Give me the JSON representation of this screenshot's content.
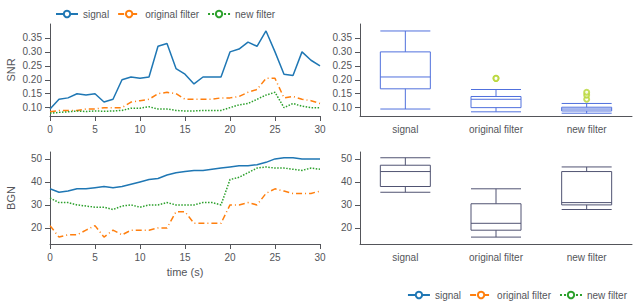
{
  "chart_data": [
    {
      "type": "line",
      "ylabel": "SNR",
      "x": [
        0,
        1,
        2,
        3,
        4,
        5,
        6,
        7,
        8,
        9,
        10,
        11,
        12,
        13,
        14,
        15,
        16,
        17,
        18,
        19,
        20,
        21,
        22,
        23,
        24,
        25,
        26,
        27,
        28,
        29,
        30
      ],
      "series": [
        {
          "name": "signal",
          "color": "#1f77b4",
          "line_style": "solid",
          "values": [
            0.095,
            0.13,
            0.135,
            0.15,
            0.145,
            0.15,
            0.12,
            0.13,
            0.2,
            0.21,
            0.205,
            0.21,
            0.32,
            0.33,
            0.24,
            0.22,
            0.185,
            0.21,
            0.21,
            0.21,
            0.3,
            0.31,
            0.335,
            0.32,
            0.375,
            0.3,
            0.22,
            0.215,
            0.3,
            0.27,
            0.25
          ]
        },
        {
          "name": "original filter",
          "color": "#ff7f0e",
          "line_style": "dashdot",
          "values": [
            0.085,
            0.09,
            0.09,
            0.09,
            0.095,
            0.095,
            0.1,
            0.1,
            0.1,
            0.12,
            0.125,
            0.13,
            0.15,
            0.155,
            0.15,
            0.13,
            0.13,
            0.13,
            0.13,
            0.135,
            0.135,
            0.14,
            0.155,
            0.165,
            0.205,
            0.205,
            0.135,
            0.14,
            0.13,
            0.125,
            0.115
          ]
        },
        {
          "name": "new filter",
          "color": "#2ca02c",
          "line_style": "dotted",
          "values": [
            0.08,
            0.083,
            0.085,
            0.088,
            0.086,
            0.088,
            0.087,
            0.088,
            0.09,
            0.098,
            0.098,
            0.103,
            0.095,
            0.095,
            0.09,
            0.088,
            0.088,
            0.09,
            0.09,
            0.09,
            0.1,
            0.11,
            0.115,
            0.13,
            0.145,
            0.155,
            0.1,
            0.115,
            0.105,
            0.1,
            0.1
          ]
        }
      ],
      "xlim": [
        0,
        30
      ],
      "xticks": [
        0,
        5,
        10,
        15,
        20,
        25,
        30
      ],
      "ylim": [
        0.07,
        0.4
      ],
      "yticks": [
        {
          "value": 0.1,
          "label": "0.10"
        },
        0.15,
        {
          "value": 0.2,
          "label": "0.20"
        },
        0.25,
        {
          "value": 0.3,
          "label": "0.30"
        },
        0.35
      ],
      "legend": "upper left",
      "grid": false
    },
    {
      "type": "box",
      "categories": [
        "signal",
        "original filter",
        "new filter"
      ],
      "boxes": [
        {
          "low": 0.095,
          "q1": 0.1675,
          "median": 0.21,
          "q3": 0.3,
          "high": 0.375,
          "outliers": []
        },
        {
          "low": 0.085,
          "q1": 0.1,
          "median": 0.13,
          "q3": 0.14,
          "high": 0.165,
          "outliers": [
            0.205,
            0.205
          ]
        },
        {
          "low": 0.08,
          "q1": 0.088,
          "median": 0.095,
          "q3": 0.1015,
          "high": 0.115,
          "outliers": [
            0.13,
            0.145,
            0.155
          ]
        }
      ],
      "ylim": [
        0.07,
        0.4
      ],
      "yticks": [
        {
          "value": 0.1,
          "label": "0.10"
        },
        0.15,
        {
          "value": 0.2,
          "label": "0.20"
        },
        0.25,
        {
          "value": 0.3,
          "label": "0.30"
        },
        0.35
      ],
      "grid": false
    },
    {
      "type": "line",
      "ylabel": "BGN",
      "xlabel": "time (s)",
      "x": [
        0,
        1,
        2,
        3,
        4,
        5,
        6,
        7,
        8,
        9,
        10,
        11,
        12,
        13,
        14,
        15,
        16,
        17,
        18,
        19,
        20,
        21,
        22,
        23,
        24,
        25,
        26,
        27,
        28,
        29,
        30
      ],
      "series": [
        {
          "name": "signal",
          "color": "#1f77b4",
          "line_style": "solid",
          "values": [
            37,
            35.5,
            36,
            37,
            37,
            37.5,
            38,
            37.5,
            38,
            39,
            40,
            41,
            41.5,
            43,
            44,
            44.5,
            45,
            45,
            45.5,
            46,
            46.5,
            47,
            47,
            47.5,
            48.5,
            50,
            50.5,
            50.5,
            50,
            50,
            50
          ]
        },
        {
          "name": "original filter",
          "color": "#ff7f0e",
          "line_style": "dashdot",
          "values": [
            21,
            16,
            17,
            17,
            19,
            21,
            16,
            19,
            17,
            19,
            19,
            19,
            20,
            20,
            27,
            27,
            22,
            22,
            22,
            22,
            30,
            30,
            31,
            30,
            35,
            37,
            36,
            35,
            35,
            35,
            36
          ]
        },
        {
          "name": "new filter",
          "color": "#2ca02c",
          "line_style": "dotted",
          "values": [
            33,
            31,
            31,
            30,
            29.5,
            29,
            29,
            28,
            29.5,
            30,
            29,
            30,
            30,
            31,
            30,
            30,
            30,
            31,
            31,
            30,
            41,
            42,
            44,
            46,
            46.5,
            46,
            46,
            45.5,
            45,
            46,
            45.5
          ]
        }
      ],
      "xlim": [
        0,
        30
      ],
      "xticks": [
        0,
        5,
        10,
        15,
        20,
        25,
        30
      ],
      "ylim": [
        13,
        53
      ],
      "yticks": [
        20,
        30,
        40,
        50
      ],
      "legend": "lower right",
      "grid": false
    },
    {
      "type": "box",
      "categories": [
        "signal",
        "original filter",
        "new filter"
      ],
      "boxes": [
        {
          "low": 35.5,
          "q1": 38,
          "median": 44.5,
          "q3": 47.25,
          "high": 50.5,
          "outliers": []
        },
        {
          "low": 16,
          "q1": 19,
          "median": 22,
          "q3": 30.5,
          "high": 37,
          "outliers": []
        },
        {
          "low": 28,
          "q1": 30,
          "median": 31,
          "q3": 44.5,
          "high": 46.5,
          "outliers": []
        }
      ],
      "ylim": [
        13,
        53
      ],
      "yticks": [
        20,
        30,
        40,
        50
      ],
      "grid": false
    }
  ]
}
